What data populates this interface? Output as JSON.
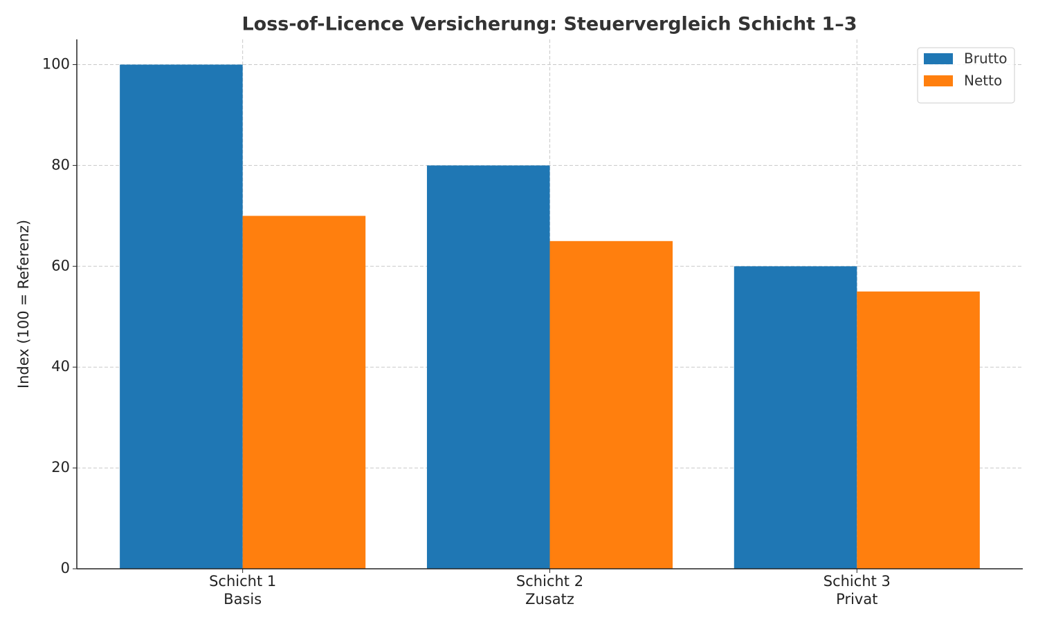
{
  "chart_data": {
    "type": "bar",
    "title": "Loss-of-Licence Versicherung: Steuervergleich Schicht 1–3",
    "y_label": "Index (100 = Referenz)",
    "categories": [
      "Schicht 1\nBasis",
      "Schicht 2\nZusatz",
      "Schicht 3\nPrivat"
    ],
    "series": [
      {
        "name": "Brutto",
        "color": "#1f77b4",
        "values": [
          100,
          80,
          60
        ]
      },
      {
        "name": "Netto",
        "color": "#ff7f0e",
        "values": [
          70,
          65,
          55
        ]
      }
    ],
    "ylim": [
      0,
      105
    ],
    "yticks": [
      0,
      20,
      40,
      60,
      80,
      100
    ],
    "grid": true,
    "legend": "upper right"
  }
}
